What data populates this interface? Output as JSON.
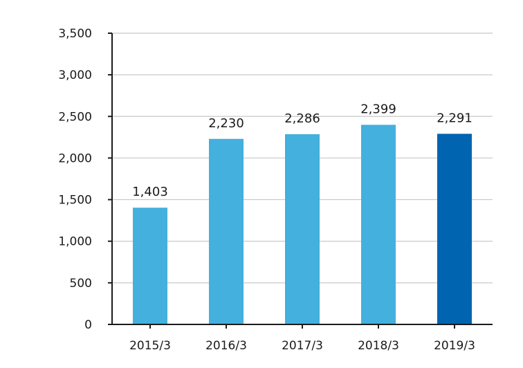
{
  "chart_data": {
    "type": "bar",
    "title": "",
    "xlabel": "",
    "ylabel": "",
    "categories": [
      "2015/3",
      "2016/3",
      "2017/3",
      "2018/3",
      "2019/3"
    ],
    "values": [
      1403,
      2230,
      2286,
      2399,
      2291
    ],
    "value_labels": [
      "1,403",
      "2,230",
      "2,286",
      "2,399",
      "2,291"
    ],
    "ylim": [
      0,
      3500
    ],
    "yticks": [
      0,
      500,
      1000,
      1500,
      2000,
      2500,
      3000,
      3500
    ],
    "ytick_labels": [
      "0",
      "500",
      "1,000",
      "1,500",
      "2,000",
      "2,500",
      "3,000",
      "3,500"
    ],
    "grid": true,
    "legend": "none",
    "colors": {
      "bar": "#43b0de",
      "highlight_bar": "#0064b0",
      "highlight_index": 4,
      "grid": "#c8c8c8",
      "axis": "#1a1a1a"
    }
  }
}
